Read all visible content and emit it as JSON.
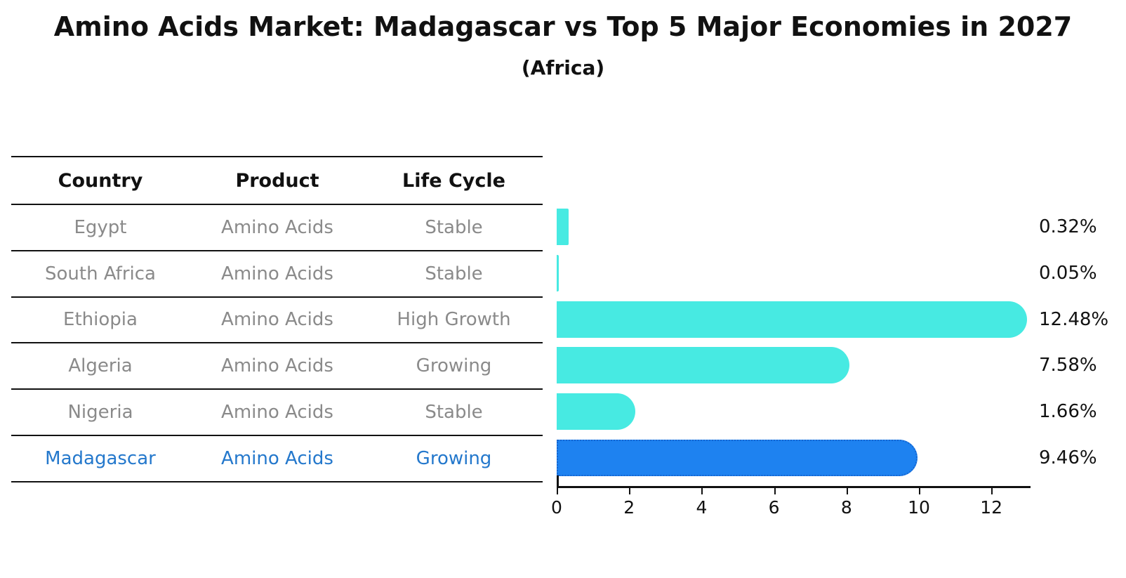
{
  "title": "Amino Acids Market: Madagascar vs Top 5 Major Economies in 2027",
  "subtitle": "(Africa)",
  "table": {
    "headers": [
      "Country",
      "Product",
      "Life Cycle"
    ],
    "rows": [
      {
        "country": "Egypt",
        "product": "Amino Acids",
        "life_cycle": "Stable",
        "highlight": false
      },
      {
        "country": "South Africa",
        "product": "Amino Acids",
        "life_cycle": "Stable",
        "highlight": false
      },
      {
        "country": "Ethiopia",
        "product": "Amino Acids",
        "life_cycle": "High Growth",
        "highlight": false
      },
      {
        "country": "Algeria",
        "product": "Amino Acids",
        "life_cycle": "Growing",
        "highlight": false
      },
      {
        "country": "Nigeria",
        "product": "Amino Acids",
        "life_cycle": "Stable",
        "highlight": false
      },
      {
        "country": "Madagascar",
        "product": "Amino Acids",
        "life_cycle": "Growing",
        "highlight": true
      }
    ]
  },
  "chart_data": {
    "type": "bar",
    "orientation": "horizontal",
    "title": "Amino Acids Market: Madagascar vs Top 5 Major Economies in 2027",
    "subtitle": "(Africa)",
    "categories": [
      "Egypt",
      "South Africa",
      "Ethiopia",
      "Algeria",
      "Nigeria",
      "Madagascar"
    ],
    "values": [
      0.32,
      0.05,
      12.48,
      7.58,
      1.66,
      9.46
    ],
    "value_labels": [
      "0.32%",
      "0.05%",
      "12.48%",
      "7.58%",
      "1.66%",
      "9.46%"
    ],
    "highlight_category": "Madagascar",
    "x_ticks": [
      0,
      2,
      4,
      6,
      8,
      10,
      12
    ],
    "xlim": [
      0,
      13.1
    ],
    "grid": false,
    "legend": "none",
    "colors": {
      "bar_default": "#47eae2",
      "bar_highlight": "#1e82f0",
      "bar_highlight_border": "#1565d0",
      "highlight_text": "#2478cc",
      "row_text": "#8a8a8a",
      "text": "#111111"
    }
  }
}
